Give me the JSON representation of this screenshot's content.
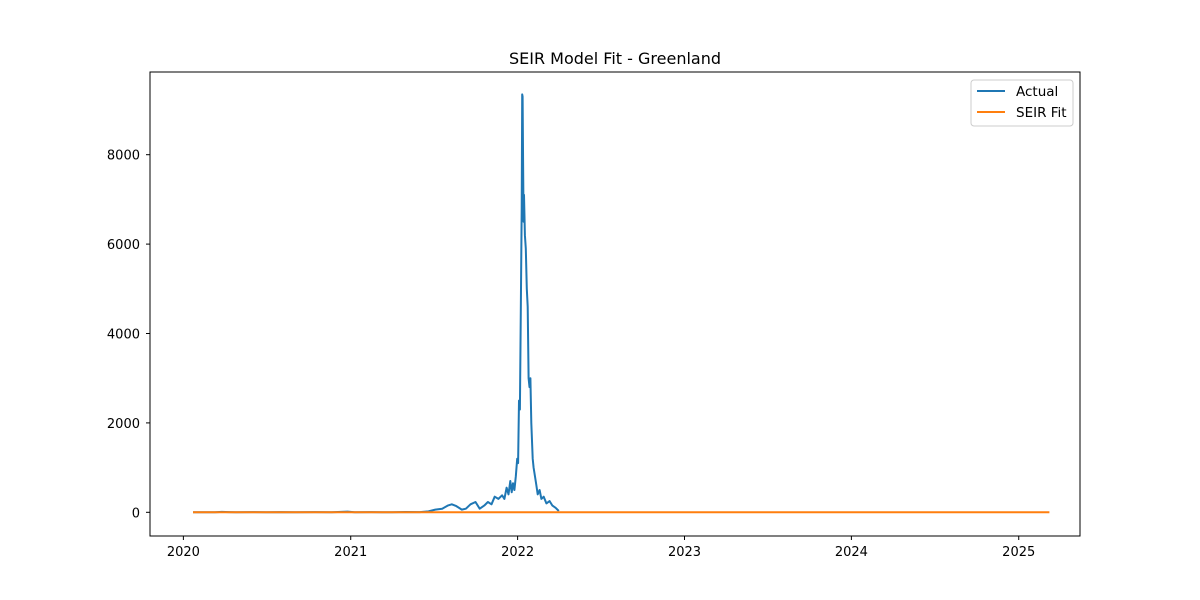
{
  "chart_data": {
    "type": "line",
    "title": "SEIR Model Fit - Greenland",
    "xlabel": "",
    "ylabel": "",
    "x_ticks": [
      "2020",
      "2021",
      "2022",
      "2023",
      "2024",
      "2025"
    ],
    "y_ticks": [
      "0",
      "2000",
      "4000",
      "6000",
      "8000"
    ],
    "ylim": [
      -530,
      9850
    ],
    "xlim": [
      "2019-10-20",
      "2025-05-15"
    ],
    "grid": false,
    "legend_position": "top-right",
    "series": [
      {
        "name": "Actual",
        "color": "#1f77b4",
        "points": [
          [
            "2020-01-22",
            0
          ],
          [
            "2020-03-10",
            0
          ],
          [
            "2020-03-25",
            10
          ],
          [
            "2020-04-10",
            5
          ],
          [
            "2020-04-25",
            0
          ],
          [
            "2020-06-01",
            5
          ],
          [
            "2020-07-01",
            0
          ],
          [
            "2020-08-01",
            5
          ],
          [
            "2020-09-01",
            0
          ],
          [
            "2020-10-15",
            5
          ],
          [
            "2020-11-20",
            3
          ],
          [
            "2020-12-25",
            15
          ],
          [
            "2021-01-10",
            3
          ],
          [
            "2021-02-15",
            5
          ],
          [
            "2021-04-01",
            0
          ],
          [
            "2021-05-01",
            8
          ],
          [
            "2021-06-01",
            5
          ],
          [
            "2021-06-20",
            20
          ],
          [
            "2021-07-05",
            60
          ],
          [
            "2021-07-20",
            80
          ],
          [
            "2021-08-01",
            150
          ],
          [
            "2021-08-10",
            180
          ],
          [
            "2021-08-20",
            140
          ],
          [
            "2021-09-01",
            60
          ],
          [
            "2021-09-10",
            80
          ],
          [
            "2021-09-20",
            180
          ],
          [
            "2021-10-01",
            230
          ],
          [
            "2021-10-10",
            80
          ],
          [
            "2021-10-20",
            150
          ],
          [
            "2021-10-28",
            230
          ],
          [
            "2021-11-05",
            180
          ],
          [
            "2021-11-12",
            350
          ],
          [
            "2021-11-20",
            300
          ],
          [
            "2021-11-28",
            380
          ],
          [
            "2021-12-03",
            300
          ],
          [
            "2021-12-08",
            550
          ],
          [
            "2021-12-12",
            400
          ],
          [
            "2021-12-16",
            700
          ],
          [
            "2021-12-19",
            450
          ],
          [
            "2021-12-22",
            650
          ],
          [
            "2021-12-25",
            500
          ],
          [
            "2021-12-28",
            800
          ],
          [
            "2021-12-31",
            1200
          ],
          [
            "2022-01-02",
            1100
          ],
          [
            "2022-01-04",
            2500
          ],
          [
            "2022-01-06",
            2300
          ],
          [
            "2022-01-08",
            4500
          ],
          [
            "2022-01-10",
            6800
          ],
          [
            "2022-01-11",
            9350
          ],
          [
            "2022-01-12",
            9300
          ],
          [
            "2022-01-13",
            7800
          ],
          [
            "2022-01-14",
            6500
          ],
          [
            "2022-01-15",
            7100
          ],
          [
            "2022-01-17",
            6200
          ],
          [
            "2022-01-19",
            5900
          ],
          [
            "2022-01-21",
            5000
          ],
          [
            "2022-01-23",
            4600
          ],
          [
            "2022-01-25",
            3000
          ],
          [
            "2022-01-27",
            2800
          ],
          [
            "2022-01-29",
            3000
          ],
          [
            "2022-01-31",
            2000
          ],
          [
            "2022-02-03",
            1200
          ],
          [
            "2022-02-05",
            1000
          ],
          [
            "2022-02-08",
            800
          ],
          [
            "2022-02-11",
            600
          ],
          [
            "2022-02-14",
            400
          ],
          [
            "2022-02-18",
            500
          ],
          [
            "2022-02-22",
            300
          ],
          [
            "2022-02-27",
            350
          ],
          [
            "2022-03-05",
            200
          ],
          [
            "2022-03-12",
            250
          ],
          [
            "2022-03-18",
            150
          ],
          [
            "2022-03-25",
            100
          ],
          [
            "2022-04-01",
            30
          ]
        ]
      },
      {
        "name": "SEIR Fit",
        "color": "#ff7f0e",
        "points": [
          [
            "2020-01-22",
            0
          ],
          [
            "2025-03-09",
            0
          ]
        ]
      }
    ]
  }
}
